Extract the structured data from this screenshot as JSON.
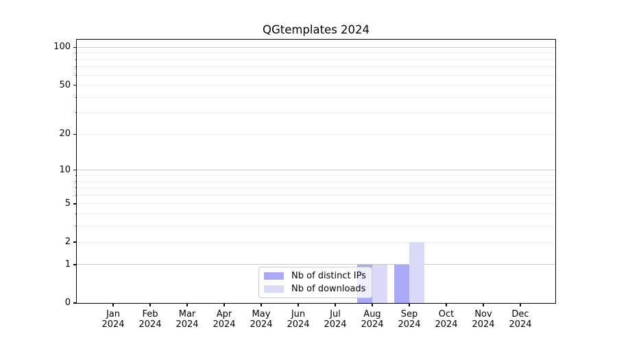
{
  "chart_data": {
    "type": "bar",
    "title": "QGtemplates 2024",
    "months": [
      "Jan",
      "Feb",
      "Mar",
      "Apr",
      "May",
      "Jun",
      "Jul",
      "Aug",
      "Sep",
      "Oct",
      "Nov",
      "Dec"
    ],
    "year": "2024",
    "series": [
      {
        "name": "Nb of distinct IPs",
        "color": "#a9a9f7",
        "values": [
          0,
          0,
          0,
          0,
          0,
          0,
          0,
          1,
          1,
          0,
          0,
          0
        ]
      },
      {
        "name": "Nb of downloads",
        "color": "#dadaf8",
        "values": [
          0,
          0,
          0,
          0,
          0,
          0,
          0,
          1,
          2,
          0,
          0,
          0
        ]
      }
    ],
    "yscale": "log1p",
    "ylim": [
      0,
      114
    ],
    "yticks": [
      0,
      1,
      2,
      5,
      10,
      20,
      50,
      100
    ],
    "grid_major": [
      1,
      10,
      100
    ],
    "grid_minor": [
      2,
      3,
      4,
      5,
      6,
      7,
      8,
      9,
      20,
      30,
      40,
      50,
      60,
      70,
      80,
      90
    ],
    "xlabel": "",
    "ylabel": "",
    "grid": true,
    "legend_position": "lower center"
  },
  "colors": {
    "background": "#ffffff",
    "spine": "#000000",
    "grid_major": "#c8c8c8",
    "grid_minor": "#eeeeee",
    "legend_border": "#c9c9c9",
    "text": "#000000"
  }
}
